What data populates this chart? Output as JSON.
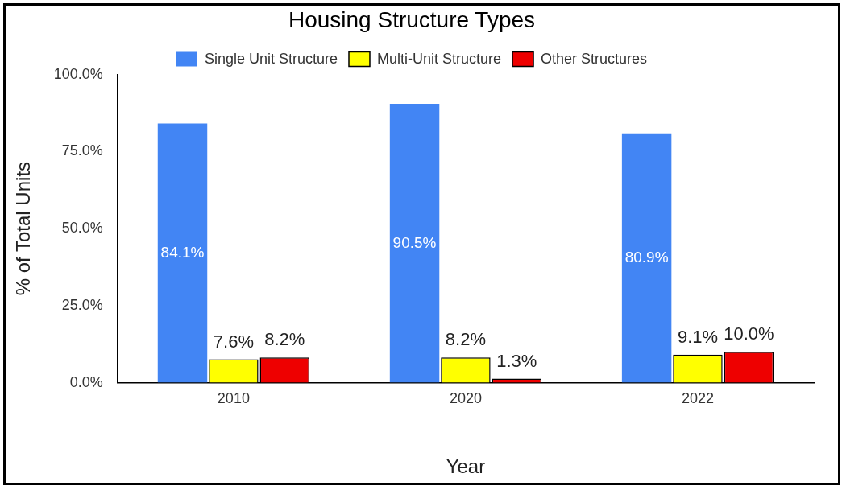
{
  "chart_data": {
    "type": "bar",
    "title": "Housing Structure Types",
    "xlabel": "Year",
    "ylabel": "% of Total Units",
    "categories": [
      "2010",
      "2020",
      "2022"
    ],
    "series": [
      {
        "name": "Single Unit Structure",
        "color": "#4285f4",
        "values": [
          84.1,
          90.5,
          80.9
        ],
        "value_labels": [
          "84.1%",
          "90.5%",
          "80.9%"
        ]
      },
      {
        "name": "Multi-Unit Structure",
        "color": "#ffff00",
        "values": [
          7.6,
          8.2,
          9.1
        ],
        "value_labels": [
          "7.6%",
          "8.2%",
          "9.1%"
        ]
      },
      {
        "name": "Other Structures",
        "color": "#ee0000",
        "values": [
          8.2,
          1.3,
          10.0
        ],
        "value_labels": [
          "8.2%",
          "1.3%",
          "10.0%"
        ]
      }
    ],
    "ylim": [
      0,
      100
    ],
    "yticks": [
      {
        "value": 0,
        "label": "0.0%"
      },
      {
        "value": 25,
        "label": "25.0%"
      },
      {
        "value": 50,
        "label": "50.0%"
      },
      {
        "value": 75,
        "label": "75.0%"
      },
      {
        "value": 100,
        "label": "100.0%"
      }
    ],
    "legend": "top"
  }
}
